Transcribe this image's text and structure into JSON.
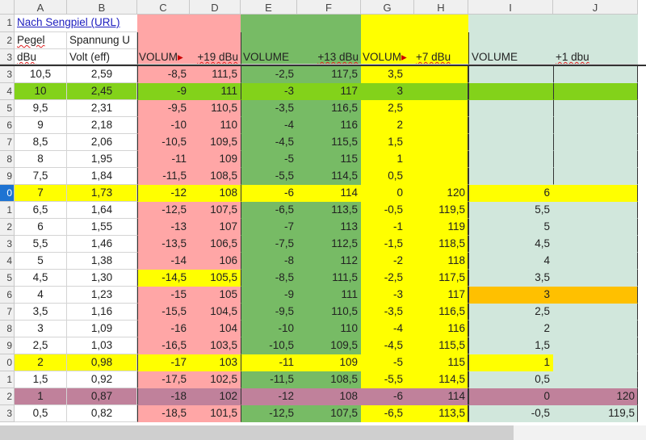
{
  "columns": [
    "A",
    "B",
    "C",
    "D",
    "E",
    "F",
    "G",
    "H",
    "I",
    "J"
  ],
  "colors": {
    "white": "#ffffff",
    "pink": "#ffa6a6",
    "green": "#77bb65",
    "yellow": "#ffff00",
    "lightgreen": "#d1e7dc",
    "lime": "#83d21a",
    "orange": "#ffc000",
    "mauve": "#c0819b",
    "link": "#2020c0"
  },
  "header": {
    "row_numbers": [
      "1",
      "2",
      "3"
    ],
    "a1_link": "Nach Sengpiel (URL)",
    "a2": "Pegel",
    "b2": "Spannung U",
    "a3": "dBu",
    "b3": "Volt (eff)",
    "c3": "VOLUM",
    "d3": "+19 dBu",
    "e3": "VOLUME",
    "f3": "+13 dBu",
    "g3": "VOLUM",
    "h3": "+7 dBu",
    "i3": "VOLUME",
    "j3": "+1 dbu",
    "truncation_marker": "▸"
  },
  "rows": [
    {
      "n": "3",
      "v": [
        "10,5",
        "2,59",
        "-8,5",
        "111,5",
        "-2,5",
        "117,5",
        "3,5",
        "",
        "",
        ""
      ]
    },
    {
      "n": "4",
      "v": [
        "10",
        "2,45",
        "-9",
        "111",
        "-3",
        "117",
        "3",
        "",
        "",
        ""
      ],
      "fill": "lime"
    },
    {
      "n": "5",
      "v": [
        "9,5",
        "2,31",
        "-9,5",
        "110,5",
        "-3,5",
        "116,5",
        "2,5",
        "",
        "",
        ""
      ]
    },
    {
      "n": "6",
      "v": [
        "9",
        "2,18",
        "-10",
        "110",
        "-4",
        "116",
        "2",
        "",
        "",
        ""
      ]
    },
    {
      "n": "7",
      "v": [
        "8,5",
        "2,06",
        "-10,5",
        "109,5",
        "-4,5",
        "115,5",
        "1,5",
        "",
        "",
        ""
      ]
    },
    {
      "n": "8",
      "v": [
        "8",
        "1,95",
        "-11",
        "109",
        "-5",
        "115",
        "1",
        "",
        "",
        ""
      ]
    },
    {
      "n": "9",
      "v": [
        "7,5",
        "1,84",
        "-11,5",
        "108,5",
        "-5,5",
        "114,5",
        "0,5",
        "",
        "",
        ""
      ]
    },
    {
      "n": "0",
      "v": [
        "7",
        "1,73",
        "-12",
        "108",
        "-6",
        "114",
        "0",
        "120",
        "6",
        ""
      ],
      "fill": "yellow",
      "selected": true
    },
    {
      "n": "1",
      "v": [
        "6,5",
        "1,64",
        "-12,5",
        "107,5",
        "-6,5",
        "113,5",
        "-0,5",
        "119,5",
        "5,5",
        ""
      ]
    },
    {
      "n": "2",
      "v": [
        "6",
        "1,55",
        "-13",
        "107",
        "-7",
        "113",
        "-1",
        "119",
        "5",
        ""
      ]
    },
    {
      "n": "3",
      "v": [
        "5,5",
        "1,46",
        "-13,5",
        "106,5",
        "-7,5",
        "112,5",
        "-1,5",
        "118,5",
        "4,5",
        ""
      ]
    },
    {
      "n": "4",
      "v": [
        "5",
        "1,38",
        "-14",
        "106",
        "-8",
        "112",
        "-2",
        "118",
        "4",
        ""
      ]
    },
    {
      "n": "5",
      "v": [
        "4,5",
        "1,30",
        "-14,5",
        "105,5",
        "-8,5",
        "111,5",
        "-2,5",
        "117,5",
        "3,5",
        ""
      ],
      "fill_cd": "yellow"
    },
    {
      "n": "6",
      "v": [
        "4",
        "1,23",
        "-15",
        "105",
        "-9",
        "111",
        "-3",
        "117",
        "3",
        ""
      ],
      "fill_ij": "orange"
    },
    {
      "n": "7",
      "v": [
        "3,5",
        "1,16",
        "-15,5",
        "104,5",
        "-9,5",
        "110,5",
        "-3,5",
        "116,5",
        "2,5",
        ""
      ]
    },
    {
      "n": "8",
      "v": [
        "3",
        "1,09",
        "-16",
        "104",
        "-10",
        "110",
        "-4",
        "116",
        "2",
        ""
      ]
    },
    {
      "n": "9",
      "v": [
        "2,5",
        "1,03",
        "-16,5",
        "103,5",
        "-10,5",
        "109,5",
        "-4,5",
        "115,5",
        "1,5",
        ""
      ]
    },
    {
      "n": "0",
      "v": [
        "2",
        "0,98",
        "-17",
        "103",
        "-11",
        "109",
        "-5",
        "115",
        "1",
        ""
      ],
      "fill_ai": "yellow"
    },
    {
      "n": "1",
      "v": [
        "1,5",
        "0,92",
        "-17,5",
        "102,5",
        "-11,5",
        "108,5",
        "-5,5",
        "114,5",
        "0,5",
        ""
      ]
    },
    {
      "n": "2",
      "v": [
        "1",
        "0,87",
        "-18",
        "102",
        "-12",
        "108",
        "-6",
        "114",
        "0",
        "120"
      ],
      "fill": "mauve"
    },
    {
      "n": "3",
      "v": [
        "0,5",
        "0,82",
        "-18,5",
        "101,5",
        "-12,5",
        "107,5",
        "-6,5",
        "113,5",
        "-0,5",
        "119,5"
      ]
    }
  ]
}
